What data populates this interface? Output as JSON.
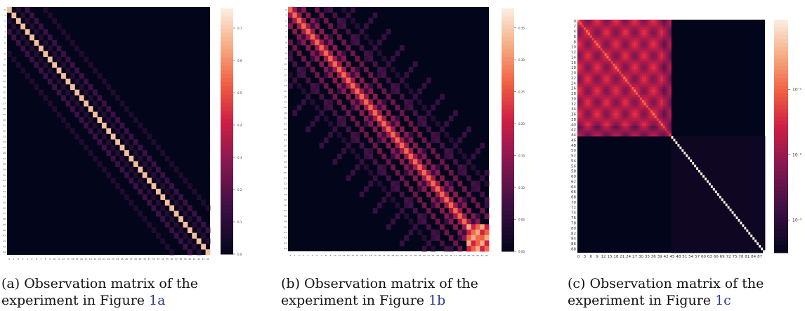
{
  "figure": {
    "panels": [
      {
        "caption_prefix": "(a) Observation matrix of the experiment in Figure ",
        "caption_ref": "1a",
        "chart_data": {
          "type": "heatmap",
          "matrix_size": 45,
          "axis_ticks": [
            "0",
            "1",
            "2",
            "3",
            "4",
            "5",
            "6",
            "7",
            "8",
            "9",
            "10",
            "11",
            "12",
            "13",
            "14",
            "15",
            "16",
            "17",
            "18",
            "19",
            "20",
            "21",
            "22",
            "23",
            "24",
            "25",
            "26",
            "27",
            "28",
            "29",
            "30",
            "31",
            "32",
            "33",
            "34",
            "35",
            "36",
            "37",
            "38",
            "39",
            "40",
            "41",
            "42",
            "43",
            "44"
          ],
          "structure": "bright main diagonal with faint off-diagonal bands at offsets ±2, ±4 and ±8",
          "diagonal_value": 0.7,
          "colorbar": {
            "scale": "linear",
            "ticks": [
              "0.0",
              "0.1",
              "0.2",
              "0.3",
              "0.4",
              "0.5",
              "0.6",
              "0.7"
            ],
            "range": [
              0,
              0.78
            ]
          },
          "colormap": "rocket"
        }
      },
      {
        "caption_prefix": "(b) Observation matrix of the experiment in Figure ",
        "caption_ref": "1b",
        "chart_data": {
          "type": "heatmap",
          "matrix_size": 45,
          "axis_ticks": [
            "0",
            "1",
            "2",
            "3",
            "4",
            "5",
            "6",
            "7",
            "8",
            "9",
            "10",
            "11",
            "12",
            "13",
            "14",
            "15",
            "16",
            "17",
            "18",
            "19",
            "20",
            "21",
            "22",
            "23",
            "24",
            "25",
            "26",
            "27",
            "28",
            "29",
            "30",
            "31",
            "32",
            "33",
            "34",
            "35",
            "36",
            "37",
            "38",
            "39",
            "40",
            "41",
            "42",
            "43",
            "44"
          ],
          "structure": "diagonal plus several diagonal bands forming a lattice, bright block near bottom-right",
          "colorbar": {
            "scale": "linear",
            "ticks": [
              "0.00",
              "0.05",
              "0.10",
              "0.15",
              "0.20",
              "0.25",
              "0.30",
              "0.35"
            ],
            "range": [
              0,
              0.37
            ]
          },
          "colormap": "rocket"
        }
      },
      {
        "caption_prefix": "(c) Observation matrix of the experiment in Figure ",
        "caption_ref": "1c",
        "chart_data": {
          "type": "heatmap",
          "matrix_size": 90,
          "y_ticks": [
            "0",
            "2",
            "4",
            "6",
            "8",
            "10",
            "12",
            "14",
            "16",
            "18",
            "20",
            "22",
            "24",
            "26",
            "28",
            "30",
            "32",
            "34",
            "36",
            "38",
            "40",
            "42",
            "44",
            "46",
            "48",
            "50",
            "52",
            "54",
            "56",
            "58",
            "60",
            "62",
            "64",
            "66",
            "68",
            "70",
            "72",
            "74",
            "76",
            "78",
            "80",
            "82",
            "84",
            "86",
            "88"
          ],
          "x_ticks": [
            "0",
            "3",
            "6",
            "9",
            "12",
            "15",
            "18",
            "21",
            "24",
            "27",
            "30",
            "33",
            "36",
            "39",
            "42",
            "45",
            "48",
            "51",
            "54",
            "57",
            "60",
            "63",
            "66",
            "69",
            "72",
            "75",
            "78",
            "81",
            "84",
            "87"
          ],
          "structure": "dense block in rows/cols 0-44, identity diagonal in rows/cols 45-89",
          "colorbar": {
            "scale": "log",
            "ticks": [
              "10⁻¹",
              "10⁻²",
              "10⁻³"
            ]
          },
          "colormap": "rocket"
        }
      }
    ]
  }
}
